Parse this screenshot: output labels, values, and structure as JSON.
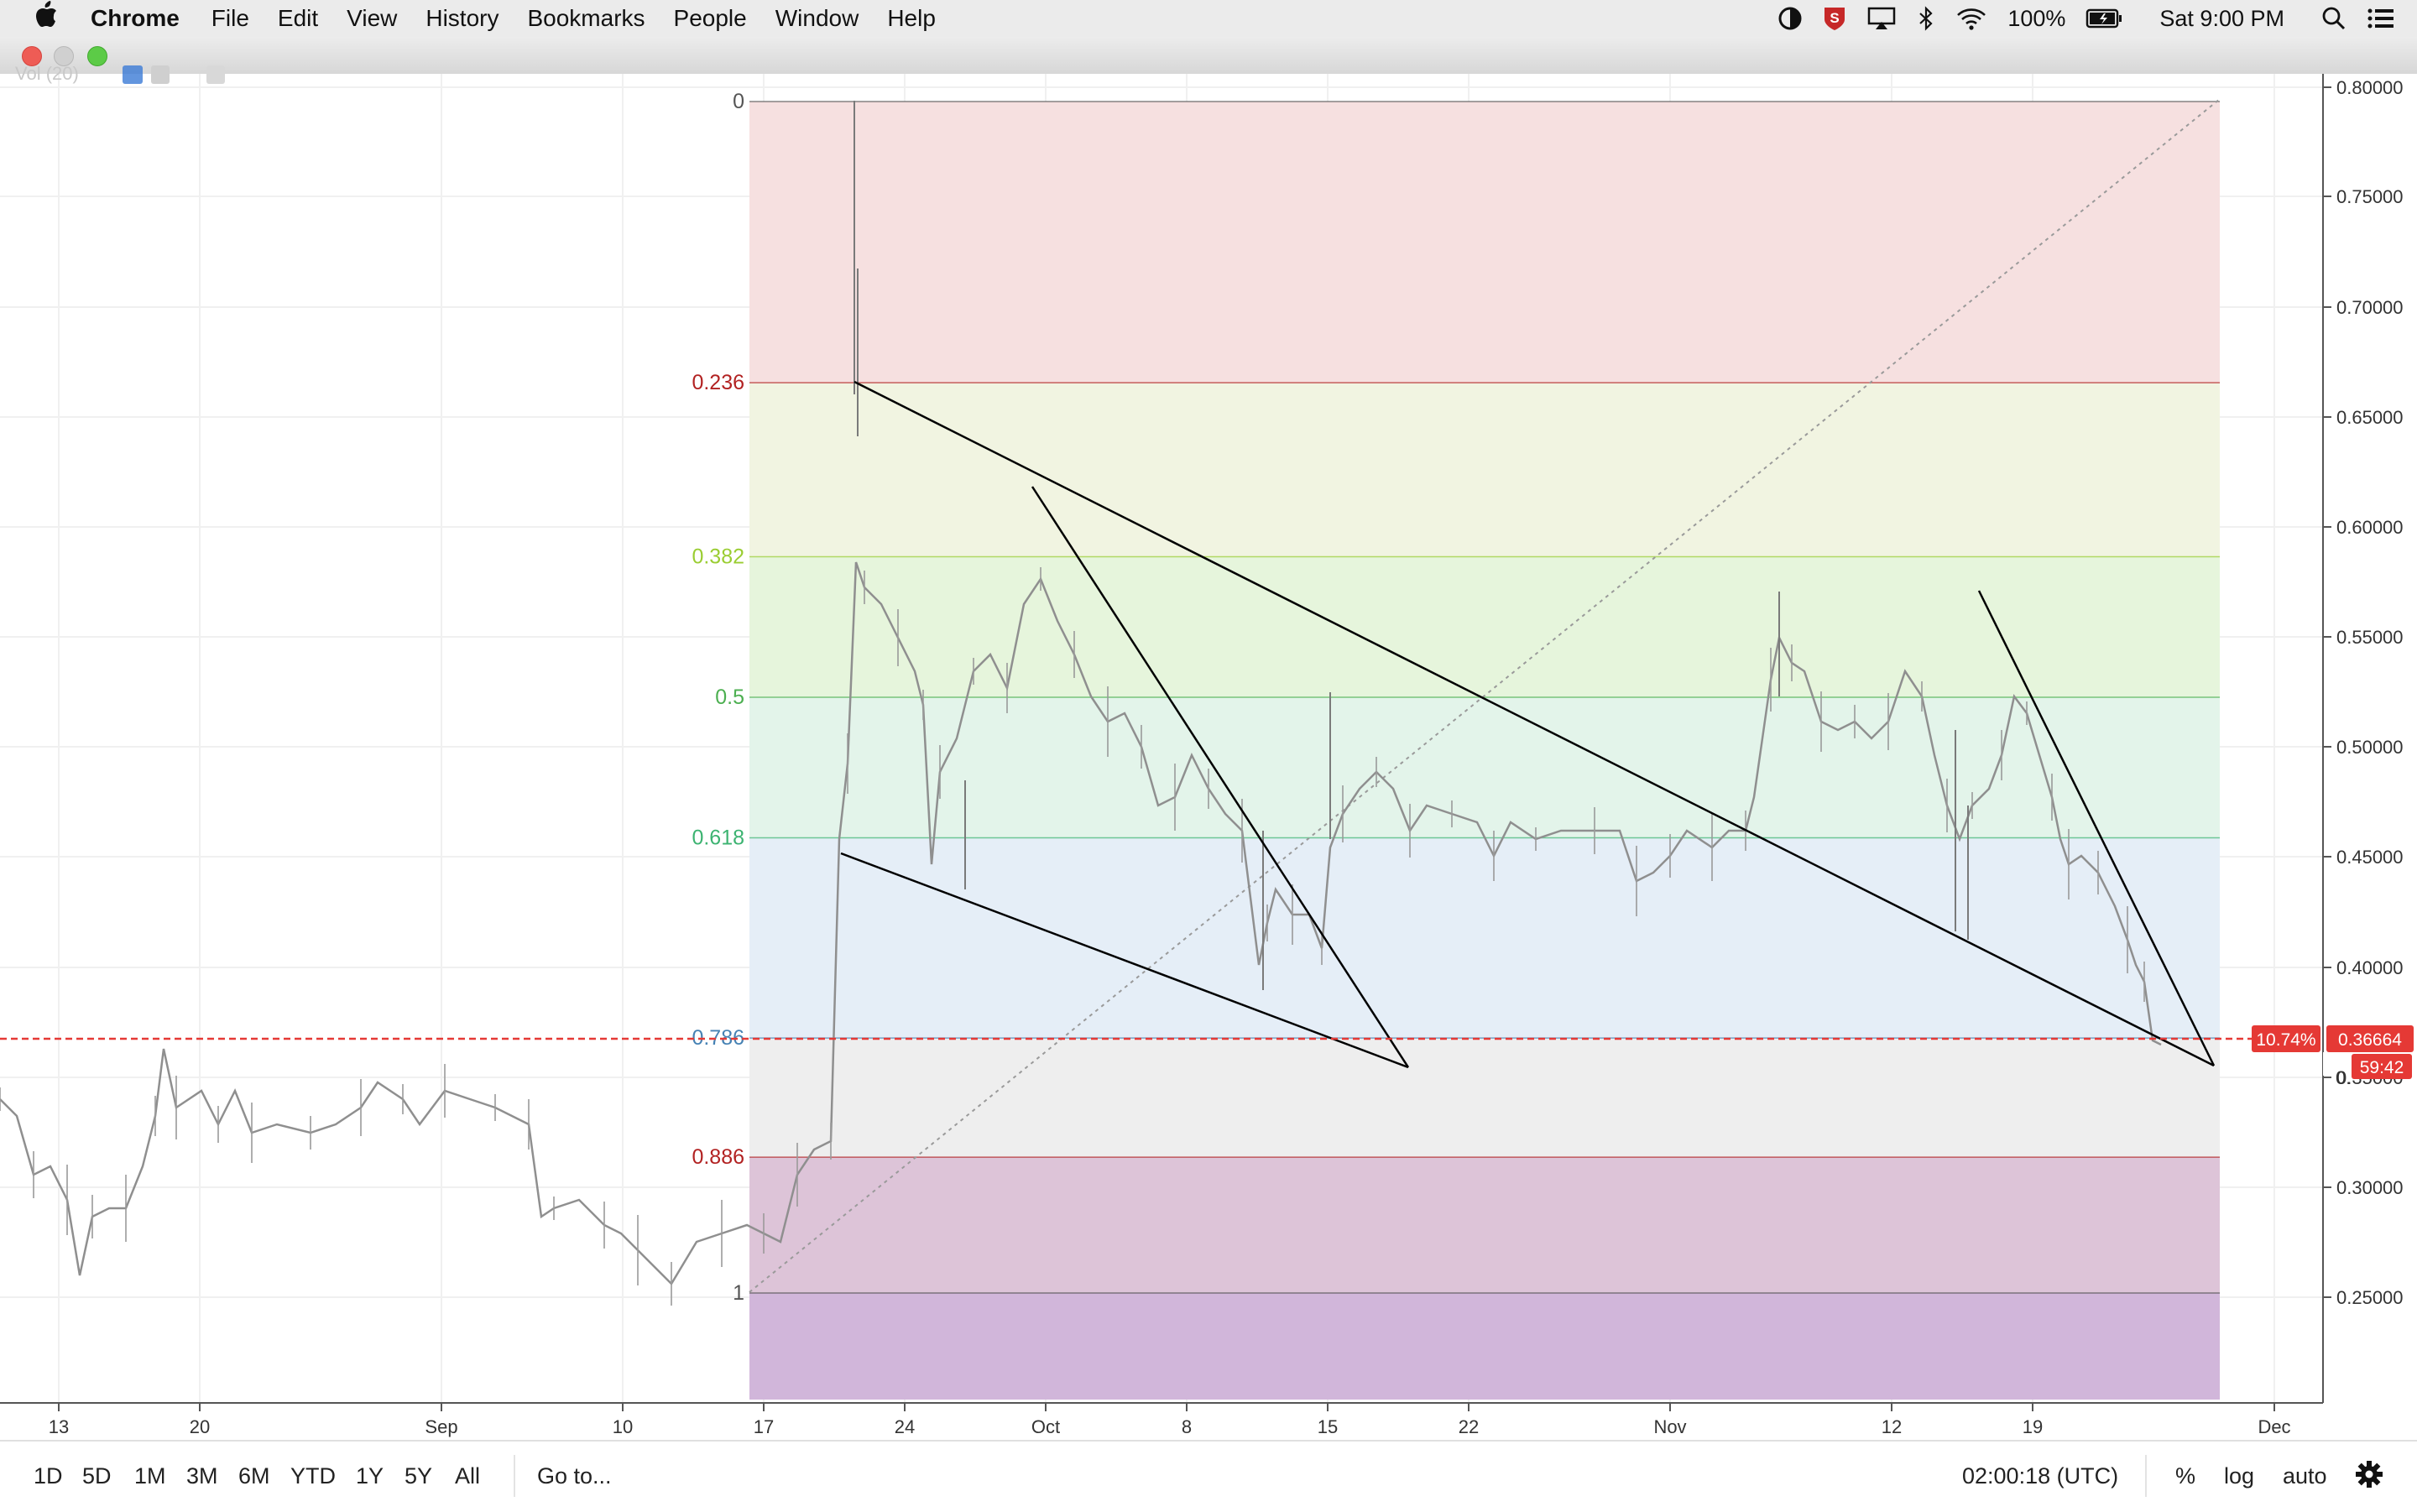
{
  "menubar": {
    "app_name": "Chrome",
    "items": [
      "File",
      "Edit",
      "View",
      "History",
      "Bookmarks",
      "People",
      "Window",
      "Help"
    ],
    "battery": "100%",
    "clock": "Sat 9:00 PM"
  },
  "indicator_label": "Vol (20)",
  "fib": {
    "levels": [
      {
        "label": "0",
        "value": 0,
        "color": "#555555"
      },
      {
        "label": "0.236",
        "value": 0.236,
        "color": "#b22222"
      },
      {
        "label": "0.382",
        "value": 0.382,
        "color": "#9acd32"
      },
      {
        "label": "0.5",
        "value": 0.5,
        "color": "#4caf50"
      },
      {
        "label": "0.618",
        "value": 0.618,
        "color": "#3cb371"
      },
      {
        "label": "0.786",
        "value": 0.786,
        "color": "#4682b4"
      },
      {
        "label": "0.886",
        "value": 0.886,
        "color": "#b22222"
      },
      {
        "label": "1",
        "value": 1,
        "color": "#555555"
      }
    ],
    "zone_colors": [
      "#f6e0e0",
      "#f1f4e1",
      "#e6f5dc",
      "#e3f4ea",
      "#e5eef7",
      "#eeeeee",
      "#ddc4d8",
      "#d1b6da"
    ]
  },
  "price_axis": {
    "ticks": [
      "0.80000",
      "0.75000",
      "0.70000",
      "0.65000",
      "0.60000",
      "0.55000",
      "0.50000",
      "0.45000",
      "0.40000",
      "0.35000",
      "0.30000",
      "0.25000"
    ],
    "current_price": "0.36664",
    "change_pct": "10.74%",
    "countdown": "59:42",
    "partial_label": "0."
  },
  "time_axis": {
    "labels": [
      "13",
      "20",
      "Sep",
      "10",
      "17",
      "24",
      "Oct",
      "8",
      "15",
      "22",
      "Nov",
      "12",
      "19",
      "Dec"
    ]
  },
  "toolbar": {
    "timeframes": [
      "1D",
      "5D",
      "1M",
      "3M",
      "6M",
      "YTD",
      "1Y",
      "5Y",
      "All"
    ],
    "goto": "Go to...",
    "time": "02:00:18 (UTC)",
    "percent": "%",
    "log": "log",
    "auto": "auto"
  },
  "colors": {
    "price_line": "#e53935",
    "candles": "#8f8f8f",
    "trendline": "#000000"
  },
  "icons": [
    "apple-icon",
    "dark-mode-icon",
    "shield-icon",
    "airplay-icon",
    "bluetooth-icon",
    "wifi-icon",
    "battery-icon",
    "search-icon",
    "list-icon",
    "gear-icon"
  ]
}
